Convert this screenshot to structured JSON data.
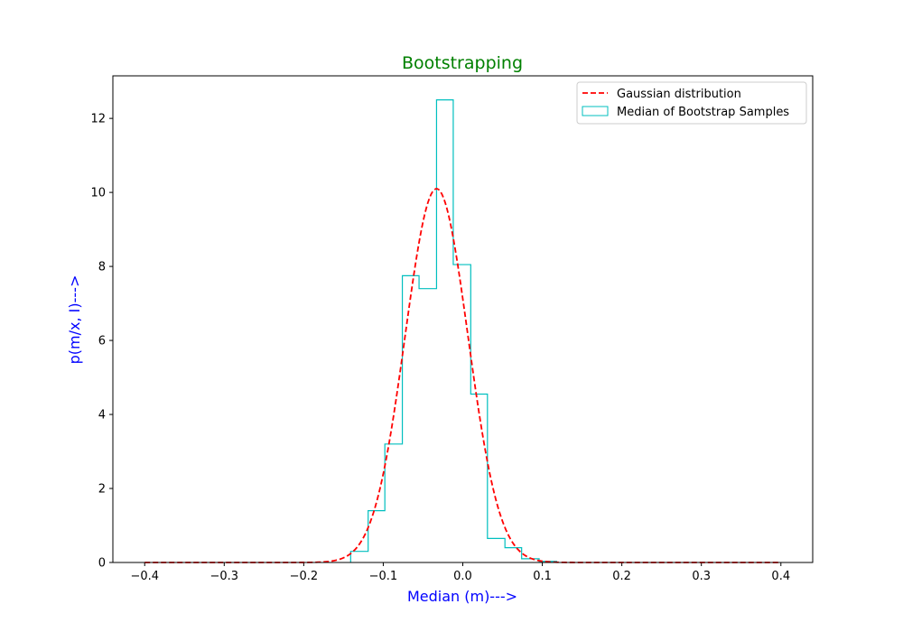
{
  "chart_data": {
    "type": "histogram",
    "title": "Bootstrapping",
    "xlabel": "Median (m)--->",
    "ylabel": "p(m/x, I)--->",
    "xlim": [
      -0.44,
      0.44
    ],
    "ylim": [
      0,
      13.15
    ],
    "xticks": [
      -0.4,
      -0.3,
      -0.2,
      -0.1,
      0.0,
      0.1,
      0.2,
      0.3,
      0.4
    ],
    "xtick_labels": [
      "−0.4",
      "−0.3",
      "−0.2",
      "−0.1",
      "0.0",
      "0.1",
      "0.2",
      "0.3",
      "0.4"
    ],
    "yticks": [
      0,
      2,
      4,
      6,
      8,
      10,
      12
    ],
    "ytick_labels": [
      "0",
      "2",
      "4",
      "6",
      "8",
      "10",
      "12"
    ],
    "grid": false,
    "legend_position": "top-right",
    "series": [
      {
        "name": "Gaussian distribution",
        "kind": "line",
        "style": "dashed",
        "color": "#ff0000",
        "mean": -0.033,
        "std": 0.0395,
        "x_range": [
          -0.4,
          0.4
        ]
      },
      {
        "name": "Median of Bootstrap Samples",
        "kind": "step-histogram",
        "color": "#00bfbf",
        "bin_edges": [
          -0.141,
          -0.119,
          -0.098,
          -0.076,
          -0.055,
          -0.033,
          -0.012,
          0.01,
          0.031,
          0.053,
          0.074,
          0.096,
          0.118
        ],
        "counts": [
          0.3,
          1.4,
          3.2,
          7.75,
          7.4,
          12.5,
          8.05,
          4.55,
          0.65,
          0.4,
          0.1,
          0.03
        ]
      }
    ]
  }
}
